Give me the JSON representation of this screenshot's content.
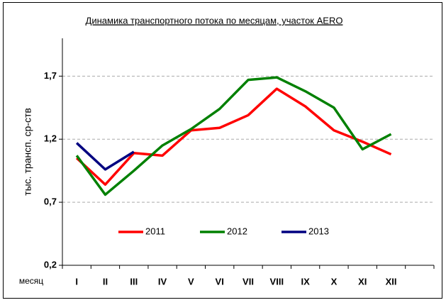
{
  "chart_data": {
    "type": "line",
    "title": "Динамика транспортного потока по месяцам, участок AERO",
    "y_label": "тыс. трансп. ср-ств",
    "x_label": "месяц",
    "categories": [
      "I",
      "II",
      "III",
      "IV",
      "V",
      "VI",
      "VII",
      "VIII",
      "IX",
      "X",
      "XI",
      "XII",
      null
    ],
    "series": [
      {
        "name": "2011",
        "color": "#ff0000",
        "values": [
          1.05,
          0.84,
          1.09,
          1.07,
          1.27,
          1.29,
          1.39,
          1.6,
          1.46,
          1.27,
          1.18,
          1.08,
          null
        ]
      },
      {
        "name": "2012",
        "color": "#008000",
        "values": [
          1.07,
          0.76,
          0.95,
          1.15,
          1.28,
          1.44,
          1.67,
          1.69,
          1.58,
          1.45,
          1.12,
          1.24,
          null
        ]
      },
      {
        "name": "2013",
        "color": "#000080",
        "values": [
          1.17,
          0.96,
          1.1,
          null,
          null,
          null,
          null,
          null,
          null,
          null,
          null,
          null,
          null
        ]
      }
    ],
    "ylim": [
      0.2,
      2.0
    ],
    "yticks": [
      {
        "value": 0.2,
        "label": "0,2"
      },
      {
        "value": 0.7,
        "label": "0,7"
      },
      {
        "value": 1.2,
        "label": "1,2"
      },
      {
        "value": 1.7,
        "label": "1,7"
      }
    ],
    "grid": true,
    "legend": "bottom"
  }
}
